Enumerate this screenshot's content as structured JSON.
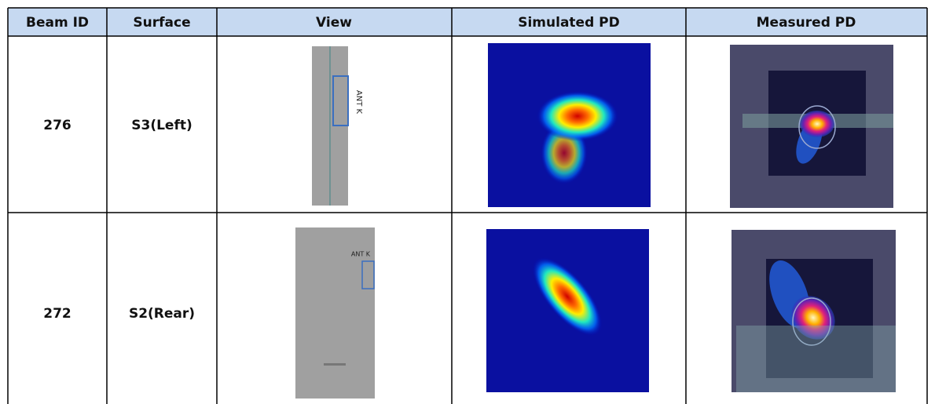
{
  "table": {
    "headers": [
      "Beam ID",
      "Surface",
      "View",
      "Simulated PD",
      "Measured PD"
    ],
    "rows": [
      {
        "beam_id": "276",
        "surface": "S3(Left)",
        "view_label": "ANT K"
      },
      {
        "beam_id": "272",
        "surface": "S2(Rear)",
        "view_label": "ANT K"
      }
    ]
  }
}
